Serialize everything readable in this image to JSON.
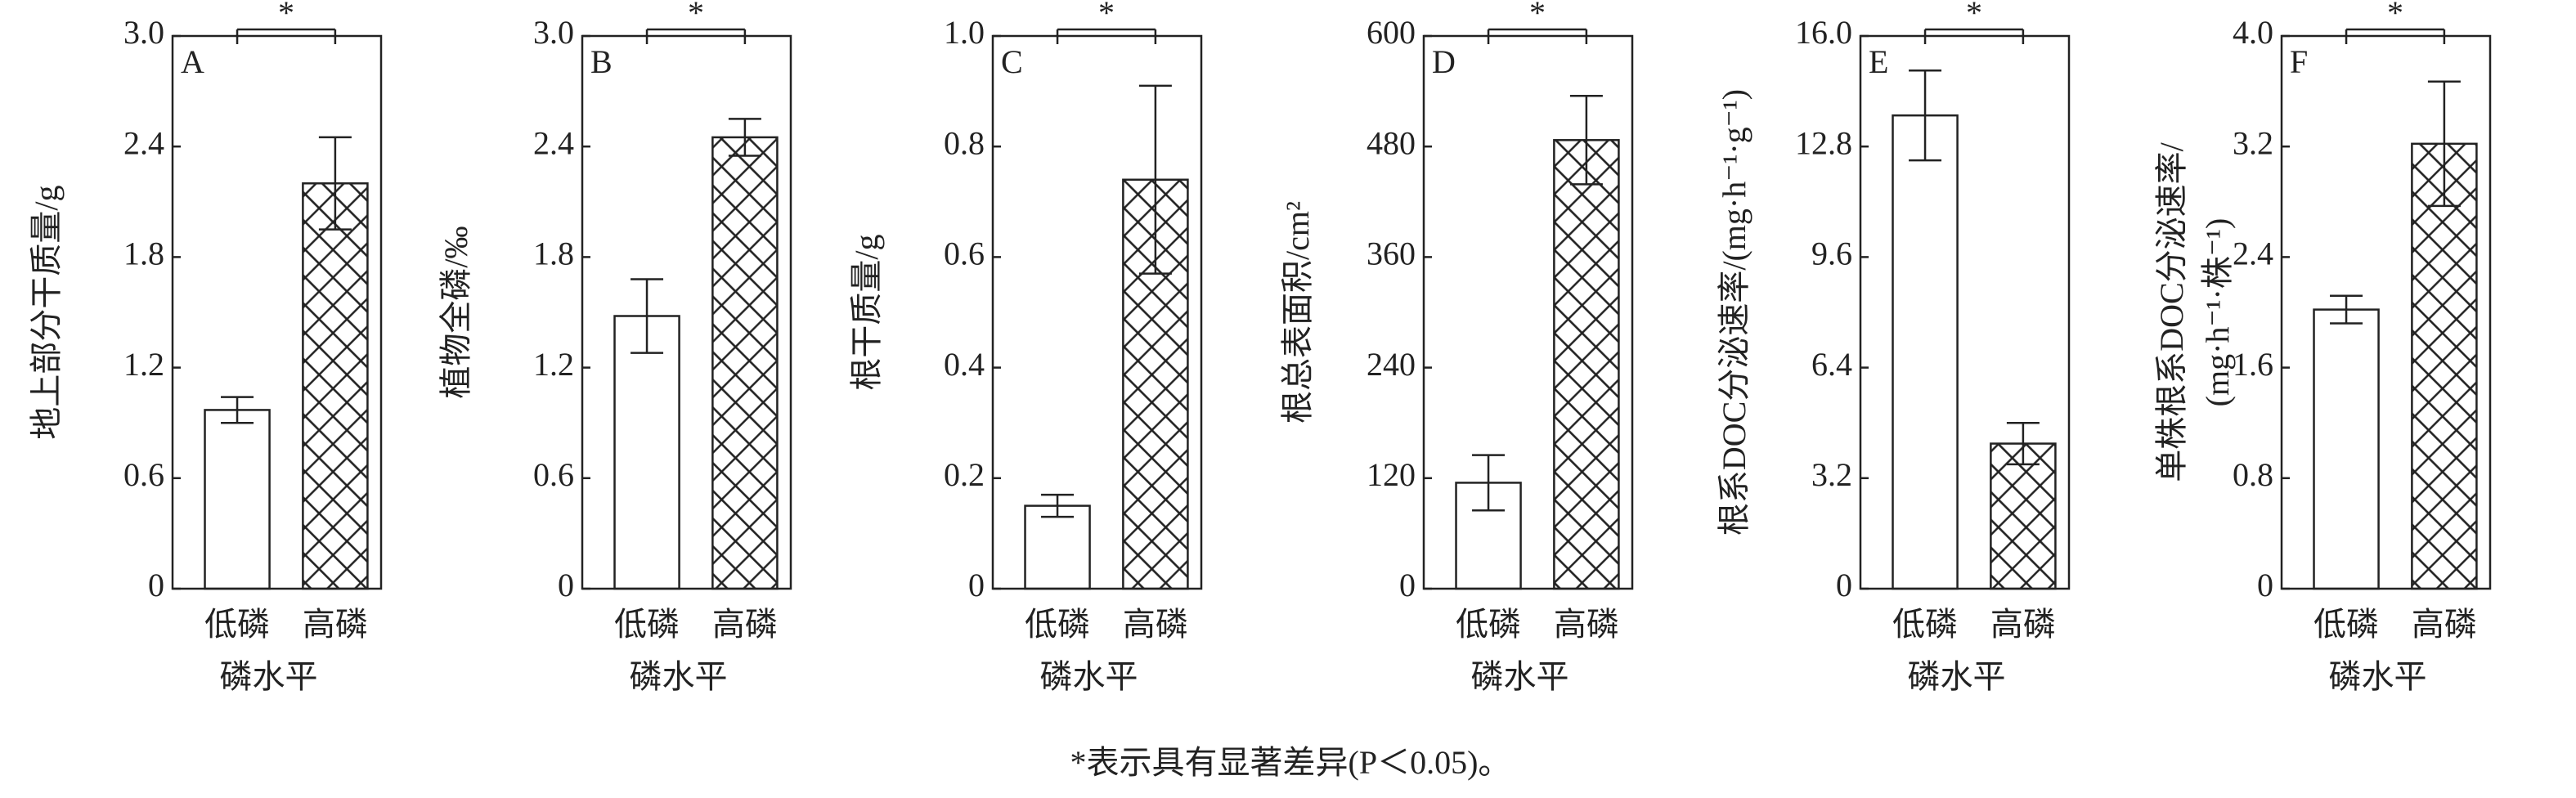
{
  "chart_data": [
    {
      "type": "bar",
      "panel": "A",
      "ylabel": "地上部分干质量/g",
      "xlabel": "磷水平",
      "categories": [
        "低磷",
        "高磷"
      ],
      "values": [
        0.97,
        2.2
      ],
      "errors": [
        0.07,
        0.25
      ],
      "bar_fills": [
        "white",
        "hatch"
      ],
      "ylim": [
        0,
        3
      ],
      "yticks": [
        0,
        0.6,
        1.2,
        1.8,
        2.4,
        {
          "value": 3,
          "label": "3.0"
        }
      ],
      "annotation": "*"
    },
    {
      "type": "bar",
      "panel": "B",
      "ylabel": "植物全磷/‰",
      "xlabel": "磷水平",
      "categories": [
        "低磷",
        "高磷"
      ],
      "values": [
        1.48,
        2.45
      ],
      "errors": [
        0.2,
        0.1
      ],
      "bar_fills": [
        "white",
        "hatch"
      ],
      "ylim": [
        0,
        3
      ],
      "yticks": [
        0,
        0.6,
        1.2,
        1.8,
        2.4,
        {
          "value": 3,
          "label": "3.0"
        }
      ],
      "annotation": "*"
    },
    {
      "type": "bar",
      "panel": "C",
      "ylabel": "根干质量/g",
      "xlabel": "磷水平",
      "categories": [
        "低磷",
        "高磷"
      ],
      "values": [
        0.15,
        0.74
      ],
      "errors": [
        0.02,
        0.17
      ],
      "bar_fills": [
        "white",
        "hatch"
      ],
      "ylim": [
        0,
        1
      ],
      "yticks": [
        0,
        0.2,
        0.4,
        0.6,
        0.8,
        {
          "value": 1,
          "label": "1.0"
        }
      ],
      "annotation": "*"
    },
    {
      "type": "bar",
      "panel": "D",
      "ylabel": "根总表面积/cm²",
      "xlabel": "磷水平",
      "categories": [
        "低磷",
        "高磷"
      ],
      "values": [
        115,
        487
      ],
      "errors": [
        30,
        48
      ],
      "bar_fills": [
        "white",
        "hatch"
      ],
      "ylim": [
        0,
        600
      ],
      "yticks": [
        0,
        120,
        240,
        360,
        480,
        600
      ],
      "annotation": "*"
    },
    {
      "type": "bar",
      "panel": "E",
      "ylabel": "根系DOC分泌速率/(mg·h⁻¹·g⁻¹)",
      "xlabel": "磷水平",
      "categories": [
        "低磷",
        "高磷"
      ],
      "values": [
        13.7,
        4.2
      ],
      "errors": [
        1.3,
        0.6
      ],
      "bar_fills": [
        "white",
        "hatch"
      ],
      "ylim": [
        0,
        16
      ],
      "yticks": [
        0,
        3.2,
        6.4,
        9.6,
        12.8,
        {
          "value": 16,
          "label": "16.0"
        }
      ],
      "annotation": "*"
    },
    {
      "type": "bar",
      "panel": "F",
      "ylabel": [
        "单株根系DOC分泌速率/",
        "(mg·h⁻¹·株⁻¹)"
      ],
      "xlabel": "磷水平",
      "categories": [
        "低磷",
        "高磷"
      ],
      "values": [
        2.02,
        3.22
      ],
      "errors": [
        0.1,
        0.45
      ],
      "bar_fills": [
        "white",
        "hatch"
      ],
      "ylim": [
        0,
        4
      ],
      "yticks": [
        0,
        0.8,
        1.6,
        2.4,
        3.2,
        {
          "value": 4,
          "label": "4.0"
        }
      ],
      "annotation": "*"
    }
  ],
  "footnote": "*表示具有显著差异(P＜0.05)。"
}
